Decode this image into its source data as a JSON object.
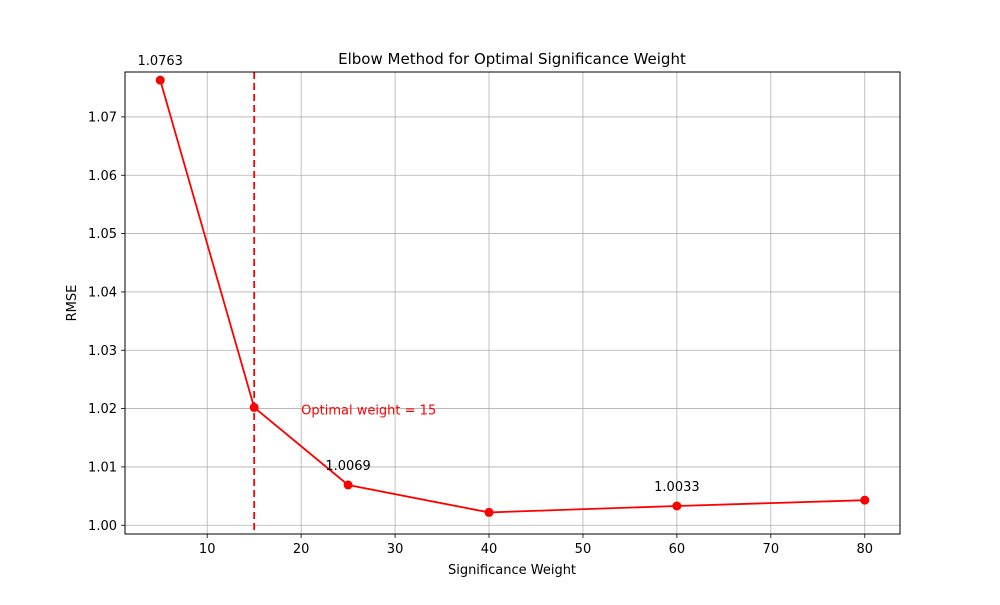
{
  "chart_data": {
    "type": "line",
    "title": "Elbow Method for Optimal Significance Weight",
    "xlabel": "Significance Weight",
    "ylabel": "RMSE",
    "xlim": [
      1.25,
      83.75
    ],
    "ylim": [
      0.9985,
      1.0777
    ],
    "x_ticks": [
      10,
      20,
      30,
      40,
      50,
      60,
      70,
      80
    ],
    "y_ticks": [
      1.0,
      1.01,
      1.02,
      1.03,
      1.04,
      1.05,
      1.06,
      1.07
    ],
    "y_tick_labels": [
      "1.00",
      "1.01",
      "1.02",
      "1.03",
      "1.04",
      "1.05",
      "1.06",
      "1.07"
    ],
    "grid": true,
    "series": [
      {
        "color": "#ff0000",
        "x": [
          5,
          15,
          25,
          40,
          60,
          80
        ],
        "y": [
          1.0763,
          1.0202,
          1.0069,
          1.0022,
          1.0033,
          1.0043
        ]
      }
    ],
    "data_labels": [
      {
        "x": 5,
        "y": 1.0763,
        "text": "1.0763"
      },
      {
        "x": 25,
        "y": 1.0069,
        "text": "1.0069"
      },
      {
        "x": 60,
        "y": 1.0033,
        "text": "1.0033"
      }
    ],
    "vline": {
      "x": 15,
      "color": "#ff0000",
      "style": "dashed"
    },
    "annotation": {
      "x": 20,
      "y": 1.0202,
      "text": "Optimal weight = 15",
      "color": "#ff0000"
    }
  }
}
